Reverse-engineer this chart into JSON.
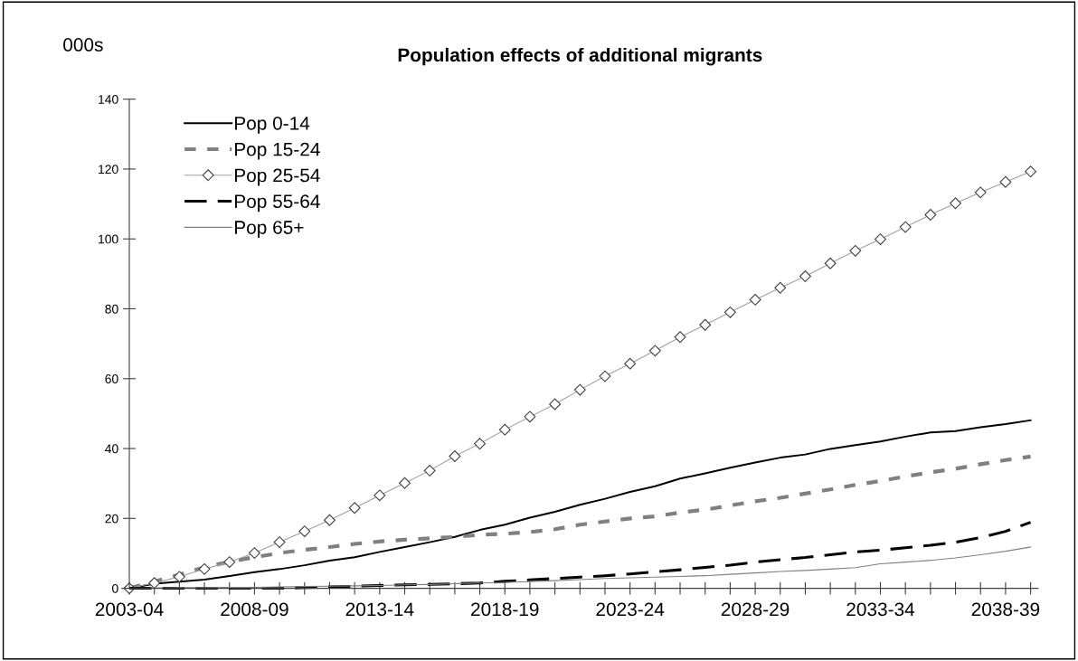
{
  "chart_data": {
    "type": "line",
    "title": "Population effects of additional migrants",
    "ylabel": "000s",
    "categories": [
      "2003-04",
      null,
      null,
      null,
      null,
      "2008-09",
      null,
      null,
      null,
      null,
      "2013-14",
      null,
      null,
      null,
      null,
      "2018-19",
      null,
      null,
      null,
      null,
      "2023-24",
      null,
      null,
      null,
      null,
      "2028-29",
      null,
      null,
      null,
      null,
      "2033-34",
      null,
      null,
      null,
      null,
      "2038-39",
      null
    ],
    "series": [
      {
        "name": "Pop 0-14",
        "color": "#000000",
        "line_style": "solid",
        "marker": "none",
        "values": [
          0,
          1.3,
          1.9,
          2.5,
          3.5,
          4.6,
          5.5,
          6.6,
          7.9,
          8.9,
          10.4,
          11.8,
          13.2,
          14.7,
          16.7,
          18.2,
          20.2,
          21.9,
          23.9,
          25.6,
          27.6,
          29.2,
          31.4,
          32.9,
          34.5,
          36.0,
          37.4,
          38.3,
          39.9,
          41.0,
          42.0,
          43.4,
          44.6,
          45.0,
          46.1,
          47.0,
          48.1
        ]
      },
      {
        "name": "Pop 15-24",
        "color": "#808080",
        "line_style": "dotted",
        "marker": "none",
        "values": [
          0,
          1.9,
          3.9,
          6.0,
          7.6,
          8.9,
          10.1,
          11.0,
          11.8,
          12.7,
          13.4,
          13.9,
          14.3,
          14.7,
          15.3,
          15.6,
          16.1,
          16.9,
          18.2,
          19.1,
          20.0,
          20.6,
          21.7,
          22.5,
          23.7,
          24.9,
          25.9,
          27.1,
          28.3,
          29.6,
          30.7,
          32.0,
          33.2,
          34.2,
          35.5,
          36.7,
          37.7
        ]
      },
      {
        "name": "Pop 25-54",
        "color": "#a0a0a0",
        "line_style": "solid",
        "marker": "diamond",
        "values": [
          0,
          1.5,
          3.3,
          5.5,
          7.5,
          10.1,
          13.2,
          16.3,
          19.5,
          23.0,
          26.6,
          30.1,
          33.7,
          37.8,
          41.4,
          45.4,
          49.1,
          52.7,
          56.8,
          60.7,
          64.3,
          68.0,
          71.9,
          75.4,
          79.0,
          82.6,
          86.0,
          89.3,
          93.0,
          96.6,
          99.9,
          103.4,
          106.9,
          110.2,
          113.3,
          116.3,
          119.3
        ]
      },
      {
        "name": "Pop 55-64",
        "color": "#000000",
        "line_style": "dashed",
        "marker": "none",
        "values": [
          0,
          0,
          0,
          0,
          0,
          0,
          0,
          0.2,
          0.4,
          0.6,
          0.8,
          1.0,
          1.1,
          1.3,
          1.5,
          2.0,
          2.4,
          2.8,
          3.2,
          3.6,
          4.1,
          4.7,
          5.3,
          6.0,
          6.6,
          7.5,
          8.2,
          8.8,
          9.6,
          10.4,
          10.9,
          11.6,
          12.3,
          13.2,
          14.5,
          16.3,
          18.9
        ]
      },
      {
        "name": "Pop 65+",
        "color": "#808080",
        "line_style": "solid",
        "marker": "none",
        "values": [
          0,
          0.1,
          0.2,
          0.2,
          0.3,
          0.3,
          0.4,
          0.5,
          0.6,
          0.7,
          0.8,
          1.0,
          1.1,
          1.3,
          1.5,
          1.7,
          1.9,
          2.2,
          2.5,
          2.8,
          3.0,
          3.2,
          3.4,
          3.6,
          4.0,
          4.4,
          4.8,
          5.1,
          5.5,
          5.9,
          7.0,
          7.5,
          8.0,
          8.7,
          9.6,
          10.6,
          11.8
        ]
      }
    ],
    "ylim": [
      0,
      140
    ],
    "yticks": [
      0,
      20,
      40,
      60,
      80,
      100,
      120,
      140
    ],
    "grid": false,
    "legend": "top left"
  }
}
